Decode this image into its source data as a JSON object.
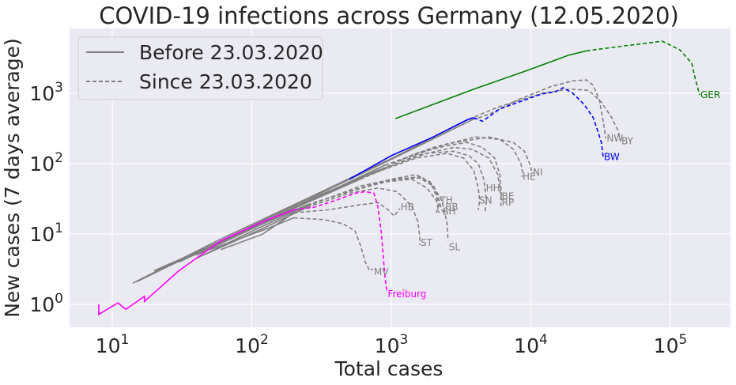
{
  "chart_data": {
    "type": "line",
    "title": "COVID-19 infections across Germany (12.05.2020)",
    "xlabel": "Total cases",
    "ylabel": "New cases (7 days average)",
    "xscale": "log",
    "yscale": "log",
    "xlim": [
      5,
      280000
    ],
    "ylim": [
      0.45,
      9000
    ],
    "grid": true,
    "xticks": [
      {
        "base": "10",
        "exp": "1",
        "value": 10
      },
      {
        "base": "10",
        "exp": "2",
        "value": 100
      },
      {
        "base": "10",
        "exp": "3",
        "value": 1000
      },
      {
        "base": "10",
        "exp": "4",
        "value": 10000
      },
      {
        "base": "10",
        "exp": "5",
        "value": 100000
      }
    ],
    "yticks": [
      {
        "base": "10",
        "exp": "0",
        "value": 1
      },
      {
        "base": "10",
        "exp": "1",
        "value": 10
      },
      {
        "base": "10",
        "exp": "2",
        "value": 100
      },
      {
        "base": "10",
        "exp": "3",
        "value": 1000
      }
    ],
    "legend": {
      "placement": "top-left",
      "entries": [
        {
          "label": "Before 23.03.2020",
          "style": "solid",
          "color": "#808080"
        },
        {
          "label": "Since 23.03.2020",
          "style": "dashed",
          "color": "#808080"
        }
      ]
    },
    "series": [
      {
        "name": "NW",
        "color": "#808080",
        "before": [
          [
            15,
            2.1
          ],
          [
            60,
            8
          ],
          [
            200,
            25
          ],
          [
            1000,
            115
          ],
          [
            3800,
            420
          ]
        ],
        "since": [
          [
            3800,
            420
          ],
          [
            5000,
            500
          ],
          [
            8000,
            800
          ],
          [
            14000,
            1250
          ],
          [
            20000,
            1500
          ],
          [
            25000,
            1550
          ],
          [
            28000,
            1300
          ],
          [
            31000,
            800
          ],
          [
            33000,
            400
          ],
          [
            34500,
            230
          ]
        ]
      },
      {
        "name": "BY",
        "color": "#808080",
        "before": [
          [
            14,
            2
          ],
          [
            60,
            8.5
          ],
          [
            200,
            26
          ],
          [
            1000,
            118
          ],
          [
            3600,
            430
          ]
        ],
        "since": [
          [
            3600,
            430
          ],
          [
            6000,
            650
          ],
          [
            12000,
            1000
          ],
          [
            19000,
            1150
          ],
          [
            26000,
            1100
          ],
          [
            32000,
            750
          ],
          [
            38000,
            450
          ],
          [
            42000,
            300
          ],
          [
            44000,
            210
          ]
        ]
      },
      {
        "name": "BE",
        "color": "#808080",
        "before": [
          [
            20,
            3
          ],
          [
            80,
            10
          ],
          [
            300,
            35
          ],
          [
            700,
            70
          ]
        ],
        "since": [
          [
            700,
            70
          ],
          [
            1500,
            140
          ],
          [
            2500,
            180
          ],
          [
            3500,
            200
          ],
          [
            4500,
            170
          ],
          [
            5500,
            120
          ],
          [
            6000,
            70
          ],
          [
            6200,
            30
          ]
        ]
      },
      {
        "name": "RP",
        "color": "#808080",
        "before": [
          [
            20,
            3
          ],
          [
            70,
            9
          ],
          [
            250,
            28
          ],
          [
            600,
            60
          ]
        ],
        "since": [
          [
            600,
            60
          ],
          [
            1500,
            130
          ],
          [
            2800,
            170
          ],
          [
            3800,
            160
          ],
          [
            5000,
            120
          ],
          [
            5800,
            70
          ],
          [
            6100,
            35
          ],
          [
            6100,
            25
          ]
        ]
      },
      {
        "name": "HH",
        "color": "#808080",
        "before": [
          [
            25,
            3.5
          ],
          [
            90,
            11
          ],
          [
            300,
            35
          ],
          [
            800,
            80
          ]
        ],
        "since": [
          [
            800,
            80
          ],
          [
            1800,
            140
          ],
          [
            2800,
            150
          ],
          [
            3600,
            130
          ],
          [
            4200,
            100
          ],
          [
            4600,
            60
          ],
          [
            4800,
            30
          ],
          [
            4700,
            20
          ]
        ]
      },
      {
        "name": "SN",
        "color": "#808080",
        "before": [
          [
            25,
            3.5
          ],
          [
            90,
            11
          ],
          [
            300,
            34
          ],
          [
            700,
            70
          ]
        ],
        "since": [
          [
            700,
            70
          ],
          [
            1500,
            120
          ],
          [
            2500,
            140
          ],
          [
            3300,
            120
          ],
          [
            3900,
            80
          ],
          [
            4200,
            45
          ],
          [
            4300,
            30
          ],
          [
            4200,
            22
          ]
        ]
      },
      {
        "name": "HE",
        "color": "#808080",
        "before": [
          [
            20,
            3
          ],
          [
            80,
            10
          ],
          [
            300,
            34
          ],
          [
            900,
            95
          ]
        ],
        "since": [
          [
            900,
            95
          ],
          [
            2000,
            170
          ],
          [
            4000,
            240
          ],
          [
            6000,
            220
          ],
          [
            7500,
            160
          ],
          [
            8500,
            100
          ],
          [
            8800,
            70
          ],
          [
            8600,
            65
          ]
        ]
      },
      {
        "name": "NI",
        "color": "#808080",
        "before": [
          [
            22,
            3.2
          ],
          [
            80,
            10
          ],
          [
            300,
            34
          ],
          [
            900,
            95
          ]
        ],
        "since": [
          [
            900,
            95
          ],
          [
            2500,
            190
          ],
          [
            5000,
            240
          ],
          [
            7500,
            200
          ],
          [
            9000,
            150
          ],
          [
            9800,
            100
          ],
          [
            10200,
            75
          ]
        ]
      },
      {
        "name": "TH",
        "color": "#808080",
        "before": [
          [
            30,
            4
          ],
          [
            100,
            12
          ],
          [
            250,
            26
          ]
        ],
        "since": [
          [
            250,
            26
          ],
          [
            600,
            45
          ],
          [
            1000,
            60
          ],
          [
            1500,
            70
          ],
          [
            1900,
            55
          ],
          [
            2100,
            35
          ],
          [
            2200,
            25
          ],
          [
            2100,
            20
          ]
        ]
      },
      {
        "name": "BB",
        "color": "#808080",
        "before": [
          [
            30,
            4
          ],
          [
            100,
            12
          ],
          [
            250,
            26
          ]
        ],
        "since": [
          [
            250,
            26
          ],
          [
            600,
            45
          ],
          [
            1100,
            60
          ],
          [
            1600,
            65
          ],
          [
            2000,
            50
          ],
          [
            2200,
            30
          ],
          [
            2300,
            22
          ],
          [
            2400,
            20
          ]
        ]
      },
      {
        "name": "SH",
        "color": "#808080",
        "before": [
          [
            40,
            5
          ],
          [
            120,
            14
          ],
          [
            250,
            26
          ]
        ],
        "since": [
          [
            250,
            26
          ],
          [
            500,
            40
          ],
          [
            900,
            55
          ],
          [
            1400,
            60
          ],
          [
            1800,
            45
          ],
          [
            2100,
            30
          ],
          [
            2200,
            20
          ]
        ]
      },
      {
        "name": "HB",
        "color": "#808080",
        "before": [
          [
            60,
            6
          ],
          [
            120,
            10
          ],
          [
            200,
            20
          ]
        ],
        "since": [
          [
            200,
            20
          ],
          [
            350,
            22
          ],
          [
            600,
            26
          ],
          [
            800,
            28
          ],
          [
            950,
            22
          ],
          [
            1050,
            18
          ],
          [
            1150,
            23
          ]
        ]
      },
      {
        "name": "ST",
        "color": "#808080",
        "before": [
          [
            45,
            5
          ],
          [
            120,
            12
          ],
          [
            250,
            24
          ]
        ],
        "since": [
          [
            250,
            24
          ],
          [
            500,
            38
          ],
          [
            800,
            45
          ],
          [
            1100,
            40
          ],
          [
            1400,
            25
          ],
          [
            1550,
            15
          ],
          [
            1600,
            9
          ],
          [
            1600,
            7
          ]
        ]
      },
      {
        "name": "SL",
        "color": "#808080",
        "before": [
          [
            40,
            4.5
          ],
          [
            110,
            12
          ],
          [
            250,
            25
          ]
        ],
        "since": [
          [
            250,
            25
          ],
          [
            600,
            48
          ],
          [
            1100,
            62
          ],
          [
            1600,
            62
          ],
          [
            2000,
            48
          ],
          [
            2300,
            30
          ],
          [
            2500,
            15
          ],
          [
            2550,
            8
          ]
        ]
      },
      {
        "name": "MV",
        "color": "#808080",
        "before": [
          [
            50,
            6
          ],
          [
            130,
            12
          ],
          [
            200,
            17
          ]
        ],
        "since": [
          [
            200,
            17
          ],
          [
            330,
            16
          ],
          [
            450,
            14
          ],
          [
            550,
            11
          ],
          [
            600,
            7
          ],
          [
            650,
            4
          ],
          [
            700,
            3
          ],
          [
            740,
            3.2
          ]
        ]
      },
      {
        "name": "BW",
        "color": "#0000ff",
        "before": [
          [
            500,
            60
          ],
          [
            1000,
            130
          ],
          [
            2000,
            240
          ],
          [
            3500,
            420
          ],
          [
            3900,
            450
          ]
        ],
        "since": [
          [
            3900,
            450
          ],
          [
            4500,
            400
          ],
          [
            6000,
            600
          ],
          [
            9000,
            800
          ],
          [
            12000,
            980
          ],
          [
            15000,
            1050
          ],
          [
            17000,
            1200
          ],
          [
            20000,
            1000
          ],
          [
            24000,
            700
          ],
          [
            28000,
            450
          ],
          [
            30000,
            300
          ],
          [
            32000,
            200
          ],
          [
            33000,
            125
          ]
        ]
      },
      {
        "name": "GER",
        "color": "#008000",
        "before": [
          [
            1070,
            437
          ],
          [
            3890,
            1140
          ],
          [
            9770,
            2170
          ],
          [
            18600,
            3470
          ],
          [
            25000,
            4000
          ]
        ],
        "since": [
          [
            25000,
            4000
          ],
          [
            31500,
            4270
          ],
          [
            53400,
            4870
          ],
          [
            87300,
            5500
          ],
          [
            117000,
            4150
          ],
          [
            142000,
            2680
          ],
          [
            151000,
            1590
          ],
          [
            162000,
            950
          ]
        ]
      },
      {
        "name": "Freiburg",
        "color": "#ff00ff",
        "before": [
          [
            8,
            1
          ],
          [
            8,
            0.72
          ],
          [
            11,
            1.05
          ],
          [
            12.5,
            0.85
          ],
          [
            17,
            1.3
          ],
          [
            17,
            1.1
          ],
          [
            30,
            3
          ],
          [
            60,
            8
          ],
          [
            120,
            15
          ],
          [
            200,
            22
          ]
        ],
        "since": [
          [
            200,
            22
          ],
          [
            280,
            24
          ],
          [
            400,
            30
          ],
          [
            550,
            38
          ],
          [
            650,
            40
          ],
          [
            750,
            38
          ],
          [
            800,
            25
          ],
          [
            850,
            10
          ],
          [
            900,
            2.5
          ],
          [
            930,
            1.5
          ]
        ]
      }
    ],
    "annotations": [
      {
        "text": "GER",
        "color": "#008000",
        "x": 162000,
        "y": 950
      },
      {
        "text": "BW",
        "color": "#0000ff",
        "x": 33000,
        "y": 125
      },
      {
        "text": "NW",
        "color": "#808080",
        "x": 34500,
        "y": 230
      },
      {
        "text": "BY",
        "color": "#808080",
        "x": 44000,
        "y": 210
      },
      {
        "text": "HE",
        "color": "#808080",
        "x": 8600,
        "y": 65
      },
      {
        "text": "NI",
        "color": "#808080",
        "x": 10200,
        "y": 75
      },
      {
        "text": "HH",
        "color": "#808080",
        "x": 4700,
        "y": 45
      },
      {
        "text": "SN",
        "color": "#808080",
        "x": 4200,
        "y": 30
      },
      {
        "text": "BE",
        "color": "#808080",
        "x": 6100,
        "y": 34
      },
      {
        "text": "RP",
        "color": "#808080",
        "x": 6100,
        "y": 28
      },
      {
        "text": "TH",
        "color": "#808080",
        "x": 2200,
        "y": 30
      },
      {
        "text": "BB",
        "color": "#808080",
        "x": 2400,
        "y": 24
      },
      {
        "text": "SH",
        "color": "#808080",
        "x": 2300,
        "y": 21
      },
      {
        "text": "HB",
        "color": "#808080",
        "x": 1150,
        "y": 24
      },
      {
        "text": "ST",
        "color": "#808080",
        "x": 1600,
        "y": 7.5
      },
      {
        "text": "SL",
        "color": "#808080",
        "x": 2550,
        "y": 6.5
      },
      {
        "text": "MV",
        "color": "#808080",
        "x": 740,
        "y": 2.9
      },
      {
        "text": "Freiburg",
        "color": "#ff00ff",
        "x": 930,
        "y": 1.4
      }
    ]
  }
}
